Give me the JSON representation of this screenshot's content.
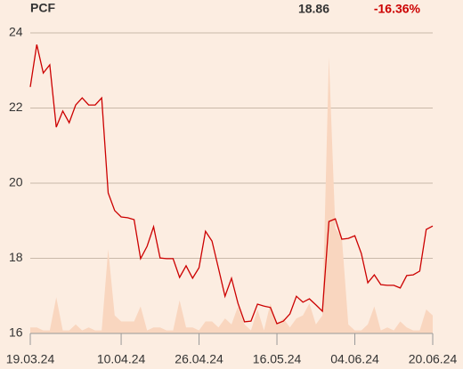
{
  "header": {
    "ticker": "PCF",
    "price": "18.86",
    "change": "-16.36%"
  },
  "chart_data": {
    "type": "line",
    "categories": [
      "19.03.24",
      null,
      null,
      null,
      null,
      null,
      null,
      null,
      null,
      null,
      null,
      null,
      null,
      null,
      "10.04.24",
      null,
      null,
      null,
      null,
      null,
      null,
      null,
      null,
      null,
      null,
      null,
      "26.04.24",
      null,
      null,
      null,
      null,
      null,
      null,
      null,
      null,
      null,
      null,
      null,
      "16.05.24",
      null,
      null,
      null,
      null,
      null,
      null,
      null,
      null,
      null,
      null,
      null,
      "04.06.24",
      null,
      null,
      null,
      null,
      null,
      null,
      null,
      null,
      null,
      null,
      null,
      "20.06.24"
    ],
    "series": [
      {
        "name": "PCF",
        "color": "#cc0000",
        "values": [
          22.56,
          23.69,
          22.93,
          23.15,
          21.49,
          21.92,
          21.61,
          22.08,
          22.27,
          22.08,
          22.08,
          22.27,
          19.74,
          19.27,
          19.1,
          19.08,
          19.03,
          17.99,
          18.32,
          18.84,
          18.01,
          17.99,
          17.99,
          17.49,
          17.8,
          17.47,
          17.75,
          18.72,
          18.46,
          17.73,
          16.99,
          17.47,
          16.8,
          16.31,
          16.33,
          16.78,
          16.73,
          16.69,
          16.26,
          16.33,
          16.52,
          16.99,
          16.83,
          16.92,
          16.76,
          16.59,
          18.98,
          19.05,
          18.51,
          18.53,
          18.6,
          18.13,
          17.35,
          17.56,
          17.3,
          17.28,
          17.28,
          17.21,
          17.54,
          17.56,
          17.66,
          18.77,
          18.86
        ]
      },
      {
        "name": "Volume",
        "color": "#f9d6bf",
        "axis": "y2",
        "values": [
          2,
          2,
          1,
          1,
          12,
          1,
          1,
          3,
          1,
          2,
          1,
          1,
          28,
          6,
          4,
          4,
          4,
          9,
          1,
          2,
          2,
          1,
          1,
          11,
          2,
          2,
          1,
          4,
          4,
          2,
          5,
          3,
          9,
          3,
          1,
          8,
          1,
          10,
          3,
          5,
          2,
          5,
          6,
          10,
          3,
          6,
          92,
          35,
          32,
          3,
          1,
          1,
          3,
          9,
          1,
          2,
          1,
          4,
          2,
          1,
          1,
          8,
          6
        ]
      }
    ],
    "ylim": [
      16,
      24
    ],
    "yticks": [
      16,
      18,
      20,
      22,
      24
    ],
    "y2lim": [
      0,
      100
    ],
    "grid": true
  }
}
